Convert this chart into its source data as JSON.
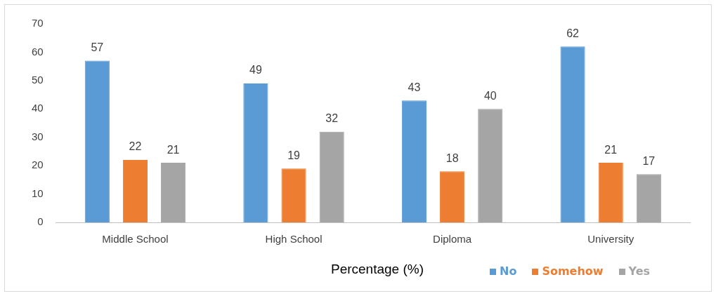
{
  "chart_data": {
    "type": "bar",
    "xlabel": "Percentage (%)",
    "categories": [
      "Middle School",
      "High School",
      "Diploma",
      "University"
    ],
    "series": [
      {
        "name": "No",
        "color": "#5b9bd5",
        "values": [
          57,
          49,
          43,
          62
        ]
      },
      {
        "name": "Somehow",
        "color": "#ed7d31",
        "values": [
          22,
          19,
          18,
          21
        ]
      },
      {
        "name": "Yes",
        "color": "#a5a5a5",
        "values": [
          21,
          32,
          40,
          17
        ]
      }
    ],
    "ylim": [
      0,
      70
    ],
    "yticks": [
      0,
      10,
      20,
      30,
      40,
      50,
      60,
      70
    ],
    "grid": false,
    "legend": "bottom right",
    "data_labels": true
  }
}
